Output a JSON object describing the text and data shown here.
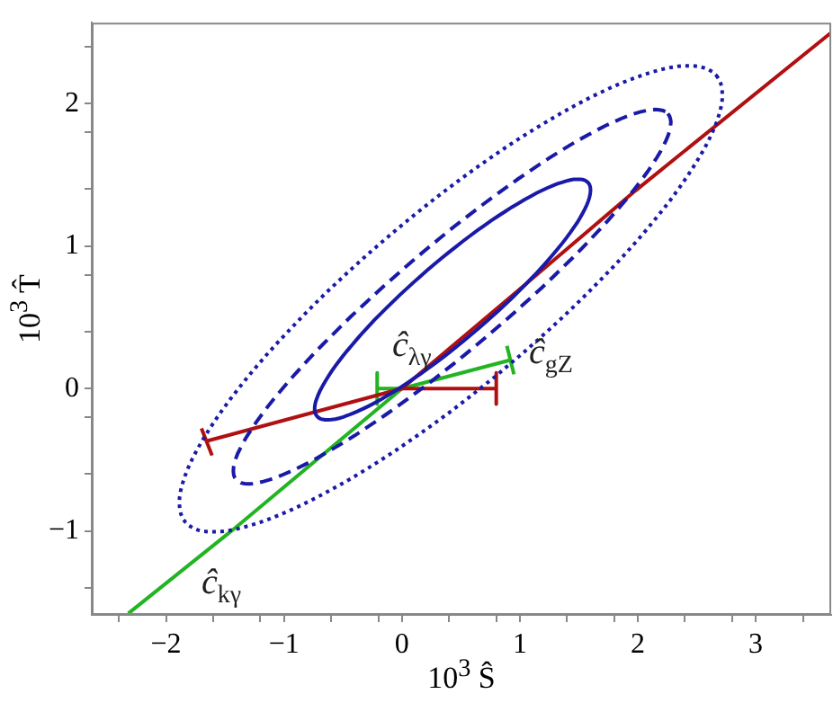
{
  "chart_data": {
    "type": "line",
    "xlabel": "10$^{3}$ Ŝ",
    "ylabel": "10$^{3}$ T̂",
    "xlim": [
      -2.63,
      3.64
    ],
    "ylim": [
      -1.59,
      2.57
    ],
    "xticks": [
      {
        "value": -2.4,
        "label": null
      },
      -2,
      {
        "value": -1.6,
        "label": null
      },
      {
        "value": -1.2,
        "label": null
      },
      -1,
      {
        "value": -0.6,
        "label": null
      },
      {
        "value": -0.2,
        "label": null
      },
      0,
      {
        "value": 0.4,
        "label": null
      },
      {
        "value": 0.8,
        "label": null
      },
      1,
      {
        "value": 1.4,
        "label": null
      },
      {
        "value": 1.8,
        "label": null
      },
      2,
      {
        "value": 2.4,
        "label": null
      },
      {
        "value": 2.8,
        "label": null
      },
      3,
      {
        "value": 3.4,
        "label": null
      }
    ],
    "yticks": [
      {
        "value": -1.4,
        "label": null
      },
      -1,
      {
        "value": -0.6,
        "label": null
      },
      {
        "value": -0.2,
        "label": null
      },
      0,
      {
        "value": 0.4,
        "label": null
      },
      {
        "value": 0.8,
        "label": null
      },
      1,
      {
        "value": 1.4,
        "label": null
      },
      {
        "value": 1.8,
        "label": null
      },
      2,
      {
        "value": 2.4,
        "label": null
      }
    ],
    "grid": false,
    "legend": false,
    "marker": "none",
    "series": [
      {
        "color": "#b01010",
        "line_style": "solid",
        "x": [
          -1.66,
          0,
          0.96,
          1.98,
          3.64
        ],
        "values": [
          -0.37,
          0,
          0.67,
          1.39,
          2.5
        ]
      },
      {
        "color": "#b01010",
        "line_style": "solid",
        "x": [
          -1.7,
          -1.61
        ],
        "values": [
          -0.28,
          -0.47
        ]
      },
      {
        "color": "#b01010",
        "line_style": "solid",
        "x": [
          0,
          0.8
        ],
        "values": [
          0,
          0
        ]
      },
      {
        "color": "#b01010",
        "line_style": "solid",
        "x": [
          0.8,
          0.8
        ],
        "values": [
          0.11,
          -0.11
        ]
      },
      {
        "color": "#22b422",
        "line_style": "solid",
        "x": [
          -2.32,
          -1.43,
          0,
          0.92
        ],
        "values": [
          -1.58,
          -0.99,
          0,
          0.2
        ]
      },
      {
        "color": "#22b422",
        "line_style": "solid",
        "x": [
          0.89,
          0.95
        ],
        "values": [
          0.3,
          0.1
        ]
      },
      {
        "color": "#22b422",
        "line_style": "solid",
        "x": [
          -0.21,
          0
        ],
        "values": [
          0,
          0
        ]
      },
      {
        "color": "#22b422",
        "line_style": "solid",
        "x": [
          -0.21,
          -0.21
        ],
        "values": [
          0.11,
          -0.11
        ]
      }
    ],
    "annotations": [
      "ĉ$_{λγ}$",
      "ĉ$_{gZ}$",
      "ĉ$_{kγ}$"
    ]
  }
}
